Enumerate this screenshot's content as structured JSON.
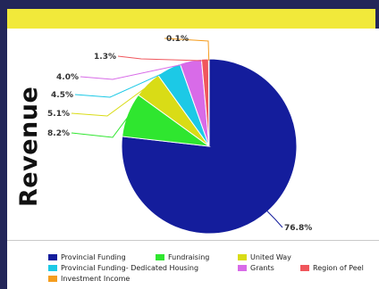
{
  "page": {
    "side_title": "Revenue"
  },
  "chart_data": {
    "type": "pie",
    "title": "",
    "slices": [
      {
        "name": "Provincial Funding",
        "value": 76.8,
        "label": "76.8%",
        "color": "#141d9c"
      },
      {
        "name": "Fundraising",
        "value": 8.2,
        "label": "8.2%",
        "color": "#2fe62f"
      },
      {
        "name": "United Way",
        "value": 5.1,
        "label": "5.1%",
        "color": "#d9dc16"
      },
      {
        "name": "Provincial Funding- Dedicated Housing",
        "value": 4.5,
        "label": "4.5%",
        "color": "#1cc9e6"
      },
      {
        "name": "Grants",
        "value": 4.0,
        "label": "4.0%",
        "color": "#d86be8"
      },
      {
        "name": "Region of Peel",
        "value": 1.3,
        "label": "1.3%",
        "color": "#f0565c"
      },
      {
        "name": "Investment Income",
        "value": 0.1,
        "label": "0.1%",
        "color": "#f59d1e"
      }
    ],
    "legend_position": "bottom"
  }
}
